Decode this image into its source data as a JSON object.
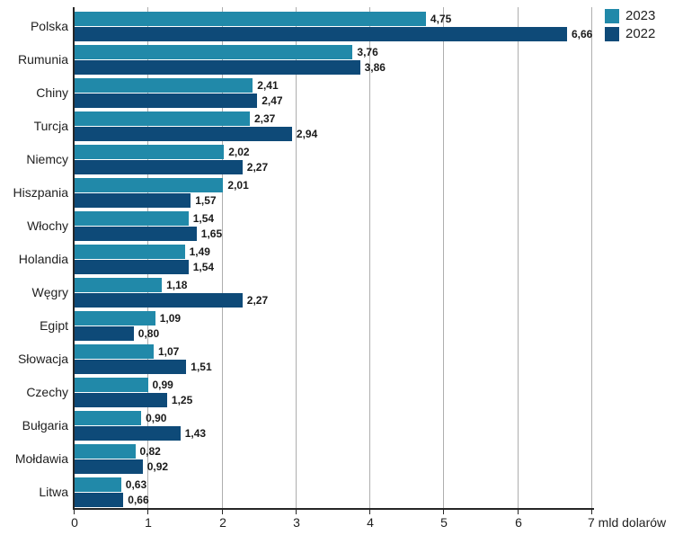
{
  "chart_data": {
    "type": "bar",
    "orientation": "horizontal",
    "categories": [
      "Polska",
      "Rumunia",
      "Chiny",
      "Turcja",
      "Niemcy",
      "Hiszpania",
      "Włochy",
      "Holandia",
      "Węgry",
      "Egipt",
      "Słowacja",
      "Czechy",
      "Bułgaria",
      "Mołdawia",
      "Litwa"
    ],
    "series": [
      {
        "name": "2023",
        "color": "#2189A9",
        "values": [
          4.75,
          3.76,
          2.41,
          2.37,
          2.02,
          2.01,
          1.54,
          1.49,
          1.18,
          1.09,
          1.07,
          0.99,
          0.9,
          0.82,
          0.63
        ]
      },
      {
        "name": "2022",
        "color": "#0E4A78",
        "values": [
          6.66,
          3.86,
          2.47,
          2.94,
          2.27,
          1.57,
          1.65,
          1.54,
          2.27,
          0.8,
          1.51,
          1.25,
          1.43,
          0.92,
          0.66
        ]
      }
    ],
    "xlim": [
      0,
      7
    ],
    "x_ticks": [
      0,
      1,
      2,
      3,
      4,
      5,
      6,
      7
    ],
    "x_tick_labels": [
      "0",
      "1",
      "2",
      "3",
      "4",
      "5",
      "6",
      "7 mld dolarów"
    ],
    "xlabel": "mld dolarów",
    "decimal_separator": ",",
    "grid": true,
    "legend_position": "top-right",
    "title": ""
  },
  "style": {
    "grid_color": "#aeaeae",
    "axis_color": "#262626",
    "text_color": "#1f1f1f",
    "value_label_color": "#1a1a1a",
    "background": "#ffffff"
  }
}
